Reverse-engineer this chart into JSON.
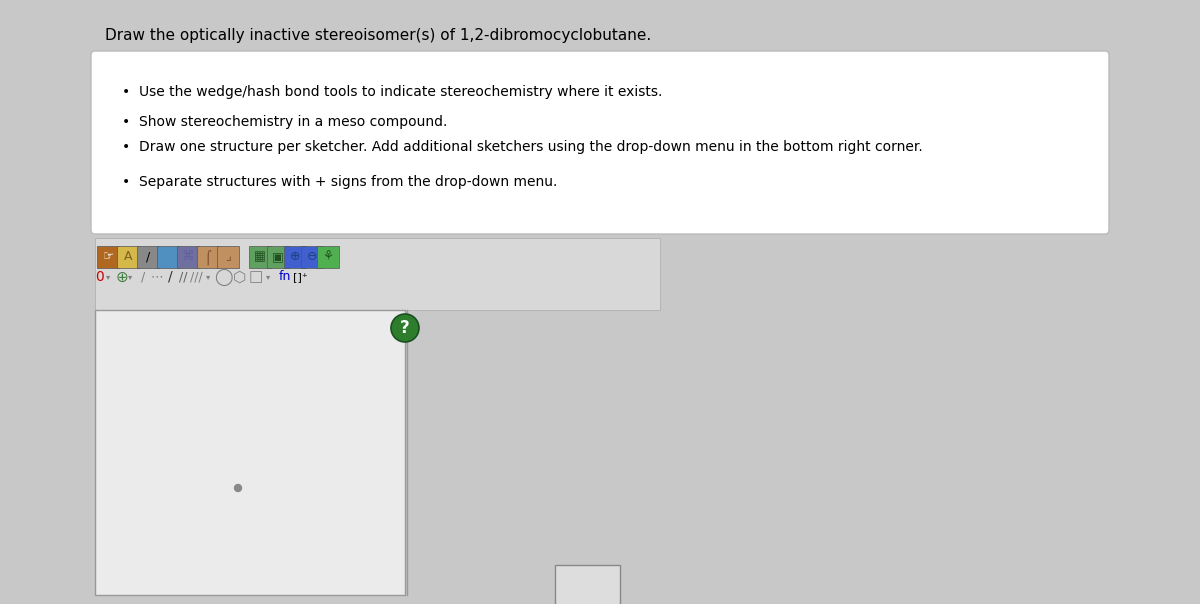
{
  "title_text": "Draw the optically inactive stereoisomer(s) of 1,2-dibromocyclobutane.",
  "title_fontsize": 11,
  "bg_color": "#c8c8c8",
  "bullet_points": [
    "Use the wedge/hash bond tools to indicate stereochemistry where it exists.",
    "Show stereochemistry in a meso compound.",
    "Draw one structure per sketcher. Add additional sketchers using the drop-down menu in the bottom right corner.",
    "Separate structures with + signs from the drop-down menu."
  ],
  "bullet_fontsize": 10,
  "question_mark_color": "#2d7d2d",
  "dot_color": "#888888"
}
